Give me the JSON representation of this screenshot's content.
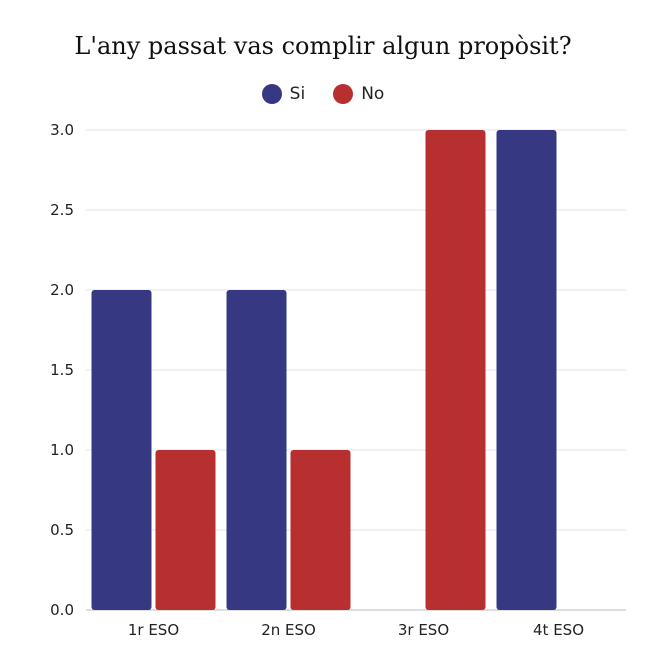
{
  "chart_data": {
    "type": "bar",
    "title": "L'any passat vas complir algun propòsit?",
    "categories": [
      "1r ESO",
      "2n ESO",
      "3r ESO",
      "4t ESO"
    ],
    "series": [
      {
        "name": "Si",
        "color": "#363882",
        "values": [
          2,
          2,
          0,
          3
        ]
      },
      {
        "name": "No",
        "color": "#b82f2f",
        "values": [
          1,
          1,
          3,
          0
        ]
      }
    ],
    "ylim": [
      0,
      3
    ],
    "yticks": [
      "0.0",
      "0.5",
      "1.0",
      "1.5",
      "2.0",
      "2.5",
      "3.0"
    ],
    "ytick_values": [
      0,
      0.5,
      1,
      1.5,
      2,
      2.5,
      3
    ],
    "grid": true,
    "legend_position": "top-center"
  }
}
